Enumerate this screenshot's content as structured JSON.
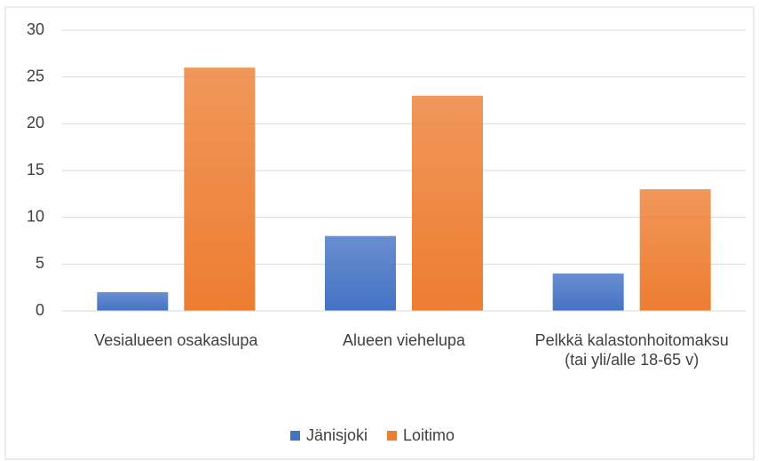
{
  "chart_data": {
    "type": "bar",
    "categories": [
      "Vesialueen osakaslupa",
      "Alueen viehelupa",
      "Pelkkä kalastonhoitomaksu (tai yli/alle 18-65 v)"
    ],
    "series": [
      {
        "name": "Jänisjoki",
        "color": "#4472c4",
        "values": [
          2,
          8,
          4
        ]
      },
      {
        "name": "Loitimo",
        "color": "#ed7d31",
        "values": [
          26,
          23,
          13
        ]
      }
    ],
    "ylim": [
      0,
      30
    ],
    "yticks": [
      0,
      5,
      10,
      15,
      20,
      25,
      30
    ],
    "grid": true,
    "legend": "bottom"
  }
}
